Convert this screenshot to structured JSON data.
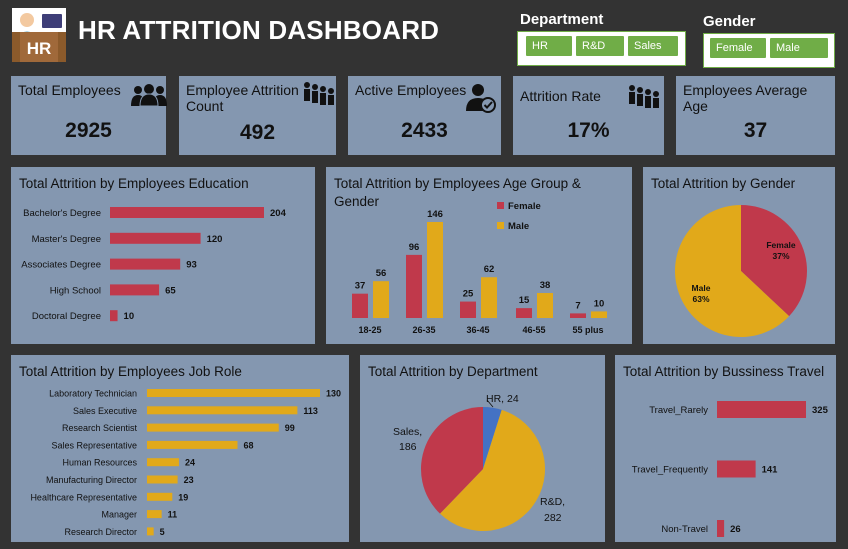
{
  "header": {
    "title": "HR ATTRITION DASHBOARD",
    "logo_text": "HR"
  },
  "slicers": {
    "department": {
      "title": "Department",
      "options": [
        "HR",
        "R&D",
        "Sales"
      ]
    },
    "gender": {
      "title": "Gender",
      "options": [
        "Female",
        "Male"
      ]
    }
  },
  "kpis": [
    {
      "label": "Total Employees",
      "value": "2925",
      "icon": "people-group-icon"
    },
    {
      "label": "Employee Attrition Count",
      "value": "492",
      "icon": "people-leaving-icon"
    },
    {
      "label": "Active Employees",
      "value": "2433",
      "icon": "user-check-icon"
    },
    {
      "label": "Attrition Rate",
      "value": "17%",
      "icon": "people-leaving-icon"
    },
    {
      "label": "Employees Average Age",
      "value": "37"
    }
  ],
  "colors": {
    "background": "#333333",
    "card": "#8497b0",
    "red": "#c0394b",
    "gold": "#e1a91a",
    "blue": "#4472c4",
    "slicer_green": "#70ad47"
  },
  "chart_data": [
    {
      "id": "education",
      "type": "bar",
      "orientation": "horizontal",
      "title": "Total Attrition by Employees Education",
      "categories": [
        "Bachelor's Degree",
        "Master's Degree",
        "Associates Degree",
        "High School",
        "Doctoral Degree"
      ],
      "values": [
        204,
        120,
        93,
        65,
        10
      ],
      "color": "#c0394b"
    },
    {
      "id": "age_gender",
      "type": "bar",
      "orientation": "vertical",
      "title": "Total Attrition by Employees Age Group & Gender",
      "categories": [
        "18-25",
        "26-35",
        "36-45",
        "46-55",
        "55 plus"
      ],
      "series": [
        {
          "name": "Female",
          "values": [
            37,
            96,
            25,
            15,
            7
          ],
          "color": "#c0394b"
        },
        {
          "name": "Male",
          "values": [
            56,
            146,
            62,
            38,
            10
          ],
          "color": "#e1a91a"
        }
      ],
      "legend": "top-right"
    },
    {
      "id": "gender",
      "type": "pie",
      "title": "Total Attrition by Gender",
      "slices": [
        {
          "label": "Female",
          "percent_label": "37%",
          "value": 37,
          "color": "#c0394b"
        },
        {
          "label": "Male",
          "percent_label": "63%",
          "value": 63,
          "color": "#e1a91a"
        }
      ]
    },
    {
      "id": "job_role",
      "type": "bar",
      "orientation": "horizontal",
      "title": "Total Attrition by Employees Job Role",
      "categories": [
        "Laboratory Technician",
        "Sales Executive",
        "Research Scientist",
        "Sales Representative",
        "Human Resources",
        "Manufacturing Director",
        "Healthcare Representative",
        "Manager",
        "Research Director"
      ],
      "values": [
        130,
        113,
        99,
        68,
        24,
        23,
        19,
        11,
        5
      ],
      "color": "#e1a91a"
    },
    {
      "id": "department",
      "type": "pie",
      "title": "Total Attrition by Department",
      "slices": [
        {
          "label": "HR",
          "value": 24,
          "color": "#4472c4"
        },
        {
          "label": "R&D",
          "value": 282,
          "color": "#e1a91a"
        },
        {
          "label": "Sales",
          "value": 186,
          "color": "#c0394b"
        }
      ]
    },
    {
      "id": "travel",
      "type": "bar",
      "orientation": "horizontal",
      "title": "Total Attrition by Bussiness Travel",
      "categories": [
        "Travel_Rarely",
        "Travel_Frequently",
        "Non-Travel"
      ],
      "values": [
        325,
        141,
        26
      ],
      "color": "#c0394b"
    }
  ]
}
